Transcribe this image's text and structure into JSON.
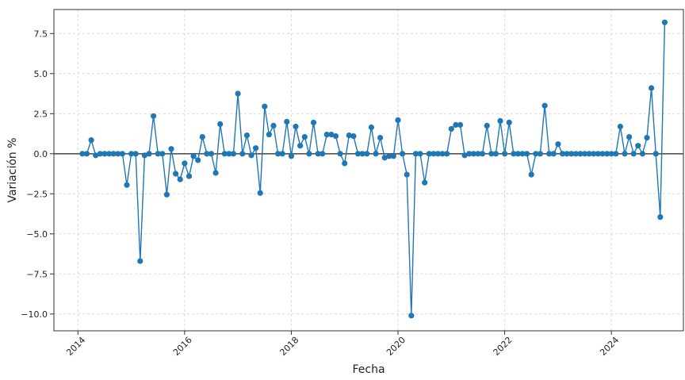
{
  "chart_data": {
    "type": "line",
    "title": "",
    "xlabel": "Fecha",
    "ylabel": "Variación %",
    "xlim": [
      2013.55,
      2025.35
    ],
    "ylim": [
      -11.05,
      9.0
    ],
    "grid": true,
    "colors": {
      "line": "#1f77b4",
      "zero_line": "#555555",
      "grid": "#d9d9d9",
      "axes": "#333333"
    },
    "x_ticks": [
      {
        "value": 2014,
        "label": "2014"
      },
      {
        "value": 2016,
        "label": "2016"
      },
      {
        "value": 2018,
        "label": "2018"
      },
      {
        "value": 2020,
        "label": "2020"
      },
      {
        "value": 2022,
        "label": "2022"
      },
      {
        "value": 2024,
        "label": "2024"
      }
    ],
    "y_ticks": [
      {
        "value": 7.5,
        "label": "7.5"
      },
      {
        "value": 5.0,
        "label": "5.0"
      },
      {
        "value": 2.5,
        "label": "2.5"
      },
      {
        "value": 0.0,
        "label": "0.0"
      },
      {
        "value": -2.5,
        "label": "−2.5"
      },
      {
        "value": -5.0,
        "label": "−5.0"
      },
      {
        "value": -7.5,
        "label": "−7.5"
      },
      {
        "value": -10.0,
        "label": "−10.0"
      }
    ],
    "reference_line": 0,
    "series": [
      {
        "start": "2014-02",
        "frequency": "monthly",
        "values": [
          0.0,
          0.0,
          0.85,
          -0.1,
          0.0,
          0.0,
          0.0,
          0.0,
          0.0,
          0.0,
          -1.95,
          0.0,
          0.0,
          -6.7,
          -0.1,
          0.0,
          2.35,
          0.0,
          0.0,
          -2.55,
          0.3,
          -1.25,
          -1.6,
          -0.6,
          -1.4,
          -0.15,
          -0.4,
          1.05,
          0.0,
          0.0,
          -1.2,
          1.85,
          0.0,
          0.0,
          0.0,
          3.75,
          0.0,
          1.15,
          -0.1,
          0.35,
          -2.45,
          2.95,
          1.2,
          1.75,
          0.0,
          0.0,
          2.0,
          -0.15,
          1.7,
          0.5,
          1.05,
          0.0,
          1.95,
          0.0,
          0.0,
          1.2,
          1.2,
          1.1,
          0.0,
          -0.6,
          1.15,
          1.1,
          0.0,
          0.0,
          0.0,
          1.65,
          0.0,
          1.0,
          -0.25,
          -0.15,
          -0.15,
          2.1,
          0.0,
          -1.3,
          -10.1,
          0.0,
          0.0,
          -1.8,
          0.0,
          0.0,
          0.0,
          0.0,
          0.0,
          1.55,
          1.8,
          1.8,
          -0.1,
          0.0,
          0.0,
          0.0,
          0.0,
          1.75,
          0.0,
          0.0,
          2.05,
          0.0,
          1.95,
          0.0,
          0.0,
          0.0,
          0.0,
          -1.3,
          0.0,
          0.0,
          3.0,
          0.0,
          0.0,
          0.6,
          0.0,
          0.0,
          0.0,
          0.0,
          0.0,
          0.0,
          0.0,
          0.0,
          0.0,
          0.0,
          0.0,
          0.0,
          0.0,
          1.7,
          0.0,
          1.05,
          0.0,
          0.5,
          0.0,
          1.0,
          4.1,
          0.0,
          -3.95,
          8.2
        ]
      }
    ]
  }
}
